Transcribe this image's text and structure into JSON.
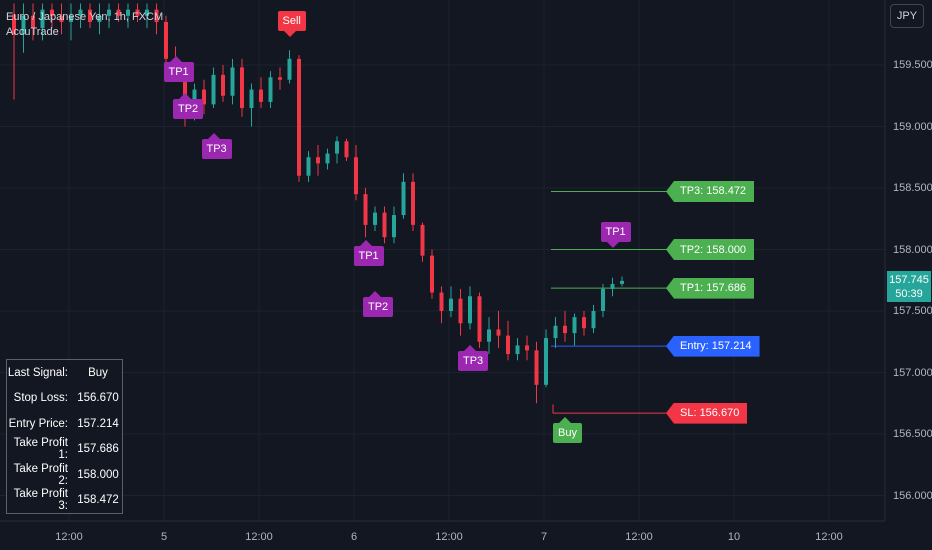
{
  "header": {
    "symbol_line": "Euro / Japanese Yen, 1h, FXCM",
    "indicator": "AccuTrade"
  },
  "currency_button": "JPY",
  "price_badge": {
    "price": "157.745",
    "countdown": "50:39",
    "color": "#26a69a"
  },
  "signal_table": [
    {
      "key": "Last Signal:",
      "value": "Buy"
    },
    {
      "key": "Stop Loss:",
      "value": "156.670"
    },
    {
      "key": "Entry Price:",
      "value": "157.214"
    },
    {
      "key": "Take Profit 1:",
      "value": "157.686"
    },
    {
      "key": "Take Profit 2:",
      "value": "158.000"
    },
    {
      "key": "Take Profit 3:",
      "value": "158.472"
    }
  ],
  "levels": [
    {
      "label": "TP3: 158.472",
      "price": 158.472,
      "color": "#4caf50"
    },
    {
      "label": "TP2: 158.000",
      "price": 158.0,
      "color": "#4caf50"
    },
    {
      "label": "TP1: 157.686",
      "price": 157.686,
      "color": "#4caf50"
    },
    {
      "label": "Entry: 157.214",
      "price": 157.214,
      "color": "#2962ff"
    },
    {
      "label": "SL: 156.670",
      "price": 156.67,
      "color": "#f23645"
    }
  ],
  "markers": [
    {
      "text": "Sell",
      "color": "#f23645",
      "price": 159.86,
      "bar": 29,
      "pointer": "down"
    },
    {
      "text": "TP1",
      "color": "#9c27b0",
      "price": 159.44,
      "bar": 17,
      "pointer": "up"
    },
    {
      "text": "TP2",
      "color": "#9c27b0",
      "price": 159.14,
      "bar": 18,
      "pointer": "up"
    },
    {
      "text": "TP3",
      "color": "#9c27b0",
      "price": 158.82,
      "bar": 21,
      "pointer": "up"
    },
    {
      "text": "TP1",
      "color": "#9c27b0",
      "price": 157.95,
      "bar": 37,
      "pointer": "up"
    },
    {
      "text": "TP2",
      "color": "#9c27b0",
      "price": 157.53,
      "bar": 38,
      "pointer": "up"
    },
    {
      "text": "TP3",
      "color": "#9c27b0",
      "price": 157.09,
      "bar": 48,
      "pointer": "up"
    },
    {
      "text": "Buy",
      "color": "#4caf50",
      "price": 156.51,
      "bar": 58,
      "pointer": "up"
    },
    {
      "text": "TP1",
      "color": "#9c27b0",
      "price": 158.14,
      "bar": 63,
      "pointer": "down"
    }
  ],
  "chart_data": {
    "type": "candlestick",
    "title": "Euro / Japanese Yen, 1h, FXCM",
    "y_axis": {
      "ticks": [
        "159.500",
        "159.000",
        "158.500",
        "158.000",
        "157.500",
        "157.000",
        "156.500",
        "156.000"
      ],
      "ylim": [
        155.78,
        160.05
      ]
    },
    "x_axis": {
      "ticks": [
        "12:00",
        "5",
        "12:00",
        "6",
        "12:00",
        "7",
        "12:00",
        "10",
        "12:00"
      ]
    },
    "colors": {
      "up": "#26a69a",
      "down": "#f23645",
      "grid": "#1e222d"
    },
    "candles": [
      {
        "o": 159.91,
        "h": 160.0,
        "l": 159.22,
        "c": 159.75
      },
      {
        "o": 159.75,
        "h": 160.0,
        "l": 159.6,
        "c": 159.9
      },
      {
        "o": 159.9,
        "h": 160.0,
        "l": 159.7,
        "c": 159.8
      },
      {
        "o": 159.8,
        "h": 160.0,
        "l": 159.7,
        "c": 159.95
      },
      {
        "o": 159.95,
        "h": 160.0,
        "l": 159.8,
        "c": 159.9
      },
      {
        "o": 159.9,
        "h": 160.0,
        "l": 159.75,
        "c": 159.85
      },
      {
        "o": 159.85,
        "h": 160.0,
        "l": 159.7,
        "c": 159.9
      },
      {
        "o": 159.9,
        "h": 160.0,
        "l": 159.8,
        "c": 159.95
      },
      {
        "o": 159.95,
        "h": 160.0,
        "l": 159.8,
        "c": 159.85
      },
      {
        "o": 159.85,
        "h": 160.0,
        "l": 159.75,
        "c": 159.9
      },
      {
        "o": 159.9,
        "h": 160.0,
        "l": 159.8,
        "c": 159.95
      },
      {
        "o": 159.95,
        "h": 160.0,
        "l": 159.85,
        "c": 159.9
      },
      {
        "o": 159.9,
        "h": 160.0,
        "l": 159.8,
        "c": 159.95
      },
      {
        "o": 159.95,
        "h": 160.0,
        "l": 159.85,
        "c": 159.9
      },
      {
        "o": 159.9,
        "h": 160.0,
        "l": 159.8,
        "c": 159.95
      },
      {
        "o": 159.95,
        "h": 160.0,
        "l": 159.75,
        "c": 159.85
      },
      {
        "o": 159.85,
        "h": 159.9,
        "l": 159.5,
        "c": 159.55
      },
      {
        "o": 159.55,
        "h": 159.65,
        "l": 159.38,
        "c": 159.42
      },
      {
        "o": 159.42,
        "h": 159.5,
        "l": 159.0,
        "c": 159.1
      },
      {
        "o": 159.1,
        "h": 159.35,
        "l": 159.05,
        "c": 159.3
      },
      {
        "o": 159.3,
        "h": 159.38,
        "l": 159.1,
        "c": 159.18
      },
      {
        "o": 159.18,
        "h": 159.48,
        "l": 159.15,
        "c": 159.42
      },
      {
        "o": 159.42,
        "h": 159.5,
        "l": 159.2,
        "c": 159.25
      },
      {
        "o": 159.25,
        "h": 159.55,
        "l": 159.18,
        "c": 159.48
      },
      {
        "o": 159.48,
        "h": 159.55,
        "l": 159.08,
        "c": 159.15
      },
      {
        "o": 159.15,
        "h": 159.35,
        "l": 159.0,
        "c": 159.3
      },
      {
        "o": 159.3,
        "h": 159.4,
        "l": 159.15,
        "c": 159.2
      },
      {
        "o": 159.2,
        "h": 159.45,
        "l": 159.15,
        "c": 159.4
      },
      {
        "o": 159.4,
        "h": 159.48,
        "l": 159.3,
        "c": 159.38
      },
      {
        "o": 159.38,
        "h": 159.62,
        "l": 159.35,
        "c": 159.55
      },
      {
        "o": 159.55,
        "h": 159.58,
        "l": 158.55,
        "c": 158.6
      },
      {
        "o": 158.6,
        "h": 158.8,
        "l": 158.55,
        "c": 158.75
      },
      {
        "o": 158.75,
        "h": 158.85,
        "l": 158.6,
        "c": 158.7
      },
      {
        "o": 158.7,
        "h": 158.82,
        "l": 158.65,
        "c": 158.78
      },
      {
        "o": 158.78,
        "h": 158.92,
        "l": 158.7,
        "c": 158.88
      },
      {
        "o": 158.88,
        "h": 158.9,
        "l": 158.72,
        "c": 158.75
      },
      {
        "o": 158.75,
        "h": 158.85,
        "l": 158.4,
        "c": 158.45
      },
      {
        "o": 158.45,
        "h": 158.5,
        "l": 158.1,
        "c": 158.2
      },
      {
        "o": 158.2,
        "h": 158.35,
        "l": 158.15,
        "c": 158.3
      },
      {
        "o": 158.3,
        "h": 158.35,
        "l": 158.05,
        "c": 158.1
      },
      {
        "o": 158.1,
        "h": 158.35,
        "l": 158.05,
        "c": 158.28
      },
      {
        "o": 158.28,
        "h": 158.62,
        "l": 158.25,
        "c": 158.55
      },
      {
        "o": 158.55,
        "h": 158.62,
        "l": 158.15,
        "c": 158.2
      },
      {
        "o": 158.2,
        "h": 158.22,
        "l": 157.9,
        "c": 157.95
      },
      {
        "o": 157.95,
        "h": 158.0,
        "l": 157.6,
        "c": 157.65
      },
      {
        "o": 157.65,
        "h": 157.7,
        "l": 157.4,
        "c": 157.5
      },
      {
        "o": 157.5,
        "h": 157.7,
        "l": 157.45,
        "c": 157.6
      },
      {
        "o": 157.6,
        "h": 157.68,
        "l": 157.3,
        "c": 157.4
      },
      {
        "o": 157.4,
        "h": 157.7,
        "l": 157.35,
        "c": 157.62
      },
      {
        "o": 157.62,
        "h": 157.65,
        "l": 157.2,
        "c": 157.25
      },
      {
        "o": 157.25,
        "h": 157.45,
        "l": 157.15,
        "c": 157.35
      },
      {
        "o": 157.35,
        "h": 157.5,
        "l": 157.2,
        "c": 157.3
      },
      {
        "o": 157.3,
        "h": 157.42,
        "l": 157.1,
        "c": 157.15
      },
      {
        "o": 157.15,
        "h": 157.28,
        "l": 157.1,
        "c": 157.22
      },
      {
        "o": 157.22,
        "h": 157.3,
        "l": 157.1,
        "c": 157.18
      },
      {
        "o": 157.18,
        "h": 157.25,
        "l": 156.75,
        "c": 156.9
      },
      {
        "o": 156.9,
        "h": 157.35,
        "l": 156.88,
        "c": 157.28
      },
      {
        "o": 157.28,
        "h": 157.45,
        "l": 157.2,
        "c": 157.38
      },
      {
        "o": 157.38,
        "h": 157.5,
        "l": 157.25,
        "c": 157.32
      },
      {
        "o": 157.32,
        "h": 157.48,
        "l": 157.22,
        "c": 157.45
      },
      {
        "o": 157.45,
        "h": 157.5,
        "l": 157.3,
        "c": 157.36
      },
      {
        "o": 157.36,
        "h": 157.55,
        "l": 157.32,
        "c": 157.5
      },
      {
        "o": 157.5,
        "h": 157.72,
        "l": 157.45,
        "c": 157.68
      },
      {
        "o": 157.68,
        "h": 157.77,
        "l": 157.62,
        "c": 157.72
      },
      {
        "o": 157.72,
        "h": 157.78,
        "l": 157.7,
        "c": 157.745
      }
    ]
  }
}
